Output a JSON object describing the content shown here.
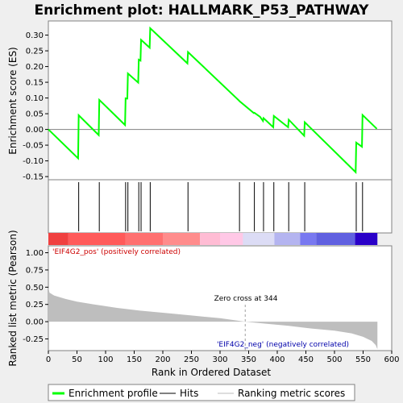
{
  "chart_data": {
    "type": "line",
    "title": "Enrichment plot: HALLMARK_P53_PATHWAY",
    "xlabel": "Rank in Ordered Dataset",
    "xlim": [
      0,
      600
    ],
    "x_ticks": [
      0,
      50,
      100,
      150,
      200,
      250,
      300,
      350,
      400,
      450,
      500,
      550,
      600
    ],
    "x_tick_labels": [
      "0",
      "50",
      "100",
      "150",
      "200",
      "250",
      "300",
      "350",
      "400",
      "450",
      "500",
      "550",
      "600"
    ],
    "es_panel": {
      "ylabel": "Enrichment score (ES)",
      "ylim": [
        -0.16,
        0.345
      ],
      "y_ticks": [
        -0.15,
        -0.1,
        -0.05,
        0.0,
        0.05,
        0.1,
        0.15,
        0.2,
        0.25,
        0.3
      ],
      "y_tick_labels": [
        "-0.15",
        "-0.10",
        "-0.05",
        "0.00",
        "0.05",
        "0.10",
        "0.15",
        "0.20",
        "0.25",
        "0.30"
      ],
      "series": {
        "name": "Enrichment profile",
        "color": "#00ff00",
        "points": [
          [
            0,
            0.0
          ],
          [
            52,
            -0.092
          ],
          [
            53,
            0.045
          ],
          [
            88,
            -0.018
          ],
          [
            89,
            0.094
          ],
          [
            134,
            0.014
          ],
          [
            135,
            0.099
          ],
          [
            138,
            0.098
          ],
          [
            139,
            0.178
          ],
          [
            157,
            0.149
          ],
          [
            158,
            0.222
          ],
          [
            161,
            0.219
          ],
          [
            162,
            0.285
          ],
          [
            177,
            0.26
          ],
          [
            178,
            0.322
          ],
          [
            243,
            0.21
          ],
          [
            244,
            0.246
          ],
          [
            333,
            0.092
          ],
          [
            334,
            0.09
          ],
          [
            359,
            0.052
          ],
          [
            360,
            0.053
          ],
          [
            370,
            0.04
          ],
          [
            375,
            0.027
          ],
          [
            376,
            0.036
          ],
          [
            393,
            0.007
          ],
          [
            394,
            0.043
          ],
          [
            419,
            0.007
          ],
          [
            420,
            0.031
          ],
          [
            447,
            -0.02
          ],
          [
            448,
            0.023
          ],
          [
            537,
            -0.136
          ],
          [
            538,
            -0.042
          ],
          [
            548,
            -0.055
          ],
          [
            549,
            0.046
          ],
          [
            574,
            0.002
          ]
        ]
      }
    },
    "hits_panel": {
      "name": "Hits",
      "positions": [
        53,
        89,
        135,
        139,
        158,
        162,
        178,
        244,
        334,
        360,
        376,
        394,
        420,
        448,
        538,
        549
      ]
    },
    "metric_panel": {
      "ylabel": "Ranked list metric (Pearson)",
      "ylim": [
        -0.42,
        1.1
      ],
      "y_ticks": [
        -0.25,
        0.0,
        0.25,
        0.5,
        0.75,
        1.0
      ],
      "y_tick_labels": [
        "-0.25",
        "0.00",
        "0.25",
        "0.50",
        "0.75",
        "1.00"
      ],
      "series_name": "Ranking metric scores",
      "profile": [
        [
          0,
          0.5
        ],
        [
          2,
          0.42
        ],
        [
          10,
          0.38
        ],
        [
          30,
          0.33
        ],
        [
          50,
          0.29
        ],
        [
          80,
          0.25
        ],
        [
          120,
          0.2
        ],
        [
          160,
          0.16
        ],
        [
          200,
          0.13
        ],
        [
          250,
          0.09
        ],
        [
          300,
          0.05
        ],
        [
          344,
          0.0
        ],
        [
          380,
          -0.03
        ],
        [
          420,
          -0.06
        ],
        [
          460,
          -0.1
        ],
        [
          500,
          -0.13
        ],
        [
          530,
          -0.17
        ],
        [
          550,
          -0.22
        ],
        [
          565,
          -0.28
        ],
        [
          572,
          -0.34
        ],
        [
          575,
          -0.4
        ]
      ],
      "positive_label": "'EIF4G2_pos' (positively correlated)",
      "negative_label": "'EIF4G2_neg' (negatively correlated)",
      "zero_cross_label": "Zero cross at 344",
      "zero_cross": 344
    },
    "heat_bar": {
      "segments": [
        {
          "start": 0,
          "end": 35,
          "color": "#f04040"
        },
        {
          "start": 35,
          "end": 135,
          "color": "#ff5a5a"
        },
        {
          "start": 135,
          "end": 200,
          "color": "#ff7070"
        },
        {
          "start": 200,
          "end": 265,
          "color": "#ff8c8c"
        },
        {
          "start": 265,
          "end": 300,
          "color": "#ffbcd4"
        },
        {
          "start": 300,
          "end": 340,
          "color": "#ffc8e6"
        },
        {
          "start": 340,
          "end": 395,
          "color": "#dcdcf5"
        },
        {
          "start": 395,
          "end": 440,
          "color": "#b4b4f0"
        },
        {
          "start": 440,
          "end": 468,
          "color": "#7878f0"
        },
        {
          "start": 468,
          "end": 536,
          "color": "#6060e0"
        },
        {
          "start": 536,
          "end": 575,
          "color": "#2a00c8"
        }
      ]
    },
    "legend": [
      {
        "label": "Enrichment profile",
        "color": "#00ff00"
      },
      {
        "label": "Hits",
        "color": "#000000"
      },
      {
        "label": "Ranking metric scores",
        "color": "#bebebe"
      }
    ]
  }
}
